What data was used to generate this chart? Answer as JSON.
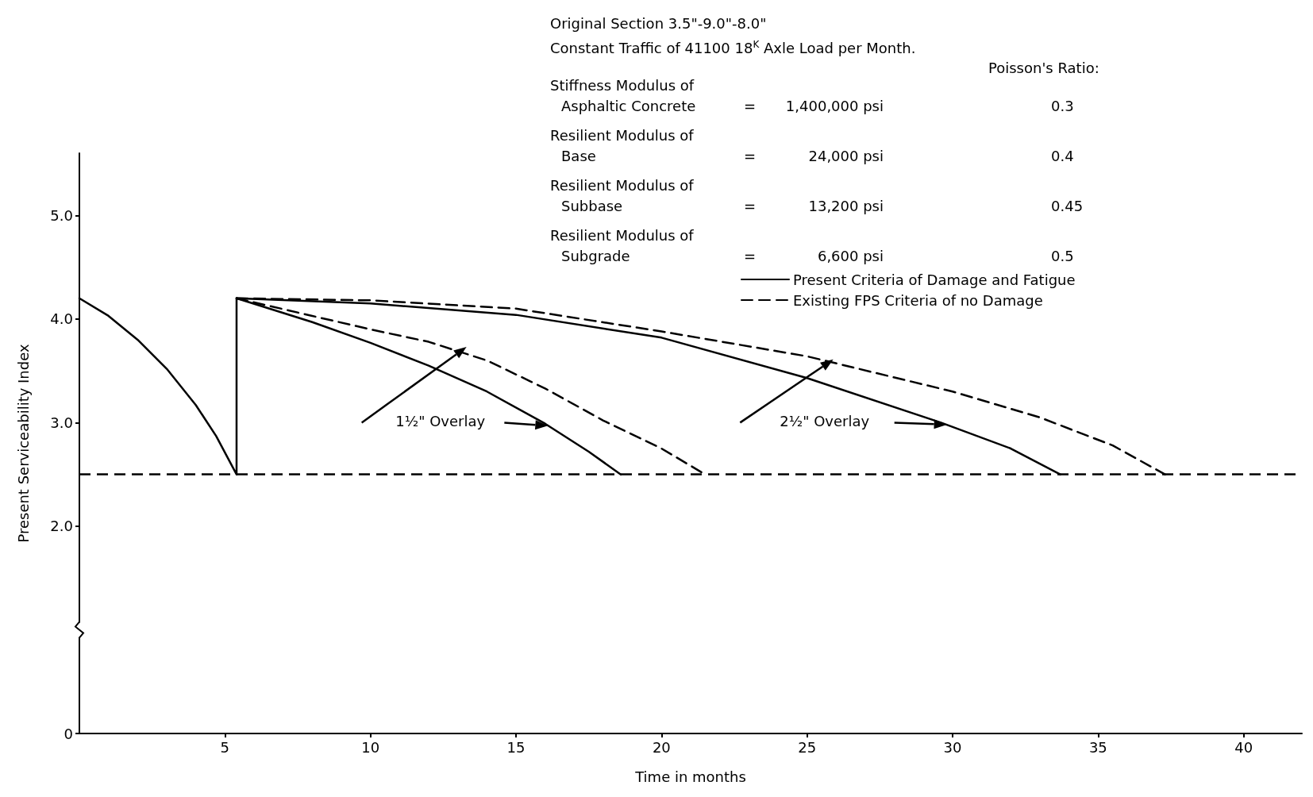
{
  "chart_data": {
    "type": "line",
    "xlabel": "Time in months",
    "ylabel": "Present Serviceability Index",
    "xlim": [
      0,
      42
    ],
    "xticks": [
      5,
      10,
      15,
      20,
      25,
      30,
      35,
      40
    ],
    "ylim": [
      0,
      5.6
    ],
    "yticks": [
      0,
      {
        "value": 2,
        "label": "2.0"
      },
      {
        "value": 3,
        "label": "3.0"
      },
      {
        "value": 4,
        "label": "4.0"
      },
      {
        "value": 5,
        "label": "5.0"
      }
    ],
    "series": [
      {
        "name": "Present Criteria of Damage and Fatigue",
        "color": "#000000",
        "line_style": "solid",
        "x": [
          0,
          1,
          2,
          3,
          4,
          4.7,
          5.4,
          5.4,
          8,
          10,
          12,
          14,
          16,
          17.5,
          18.6
        ],
        "values": [
          4.2,
          4.03,
          3.8,
          3.52,
          3.17,
          2.87,
          2.5,
          4.2,
          3.97,
          3.77,
          3.55,
          3.3,
          2.99,
          2.72,
          2.5
        ]
      },
      {
        "name": "Existing FPS Criteria of no Damage",
        "color": "#000000",
        "line_style": "dashed",
        "x": [
          5.4,
          8,
          10,
          12,
          14,
          16,
          18,
          20,
          21.5
        ],
        "values": [
          4.2,
          4.03,
          3.9,
          3.78,
          3.6,
          3.33,
          3.02,
          2.75,
          2.5
        ]
      },
      {
        "color": "#000000",
        "line_style": "solid",
        "x": [
          5.4,
          10,
          15,
          20,
          25,
          29.6,
          32,
          33.7
        ],
        "values": [
          4.2,
          4.15,
          4.04,
          3.82,
          3.43,
          3.0,
          2.75,
          2.5
        ]
      },
      {
        "color": "#000000",
        "line_style": "dashed",
        "x": [
          5.4,
          10,
          15,
          20,
          25,
          30,
          33,
          35.5,
          37.3
        ],
        "values": [
          4.2,
          4.18,
          4.1,
          3.88,
          3.64,
          3.3,
          3.05,
          2.78,
          2.5
        ]
      }
    ],
    "ref_lines": [
      {
        "axis": "y",
        "value": 2.5,
        "color": "#000000",
        "line_style": "dashed"
      }
    ],
    "annotations": [
      "Original Section 3.5\"-9.0\"-8.0\"",
      "Constant Traffic of 41100 18$^{K}$ Axle Load per Month.",
      "Poisson's Ratio:",
      "Stiffness Modulus of",
      "Asphaltic Concrete",
      "=",
      "1,400,000 psi",
      "0.3",
      "Resilient Modulus of",
      "Base",
      "=",
      "24,000 psi",
      "0.4",
      "Resilient Modulus of",
      "Subbase",
      "=",
      "13,200 psi",
      "0.45",
      "Resilient Modulus of",
      "Subgrade",
      "=",
      "6,600 psi",
      "0.5",
      "1½\" Overlay",
      "2½\" Overlay"
    ],
    "marker": "none",
    "grid": false,
    "legend": "top right"
  }
}
